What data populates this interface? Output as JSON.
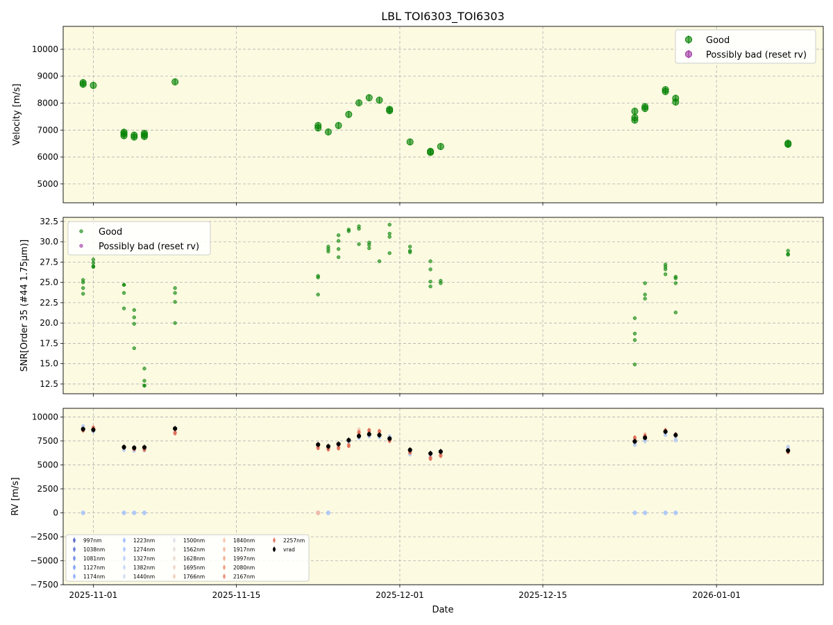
{
  "figure": {
    "title": "LBL TOI6303_TOI6303",
    "xlabel": "Date",
    "x_ticks": [
      "2025-11-01",
      "2025-11-15",
      "2025-12-01",
      "2025-12-15",
      "2026-01-01"
    ],
    "panel_bg": "#fcfae1",
    "colors": {
      "good": "#008000",
      "bad": "#9b30a0",
      "vrad": "#000000",
      "grid": "#b0b0b0"
    }
  },
  "chart_data": [
    {
      "type": "scatter",
      "ylabel": "Velocity [m/s]",
      "ylim": [
        4300,
        10850
      ],
      "y_ticks": [
        5000,
        6000,
        7000,
        8000,
        9000,
        10000
      ],
      "legend": {
        "placement": "top-right",
        "entries": [
          "Good",
          "Possibly bad (reset rv)"
        ]
      },
      "grid": true,
      "series": [
        {
          "name": "Good",
          "points": [
            [
              "2025-10-31",
              8700
            ],
            [
              "2025-10-31",
              8760
            ],
            [
              "2025-11-01",
              8660
            ],
            [
              "2025-11-04",
              6790
            ],
            [
              "2025-11-04",
              6920
            ],
            [
              "2025-11-04",
              6860
            ],
            [
              "2025-11-05",
              6740
            ],
            [
              "2025-11-05",
              6810
            ],
            [
              "2025-11-06",
              6760
            ],
            [
              "2025-11-06",
              6880
            ],
            [
              "2025-11-06",
              6820
            ],
            [
              "2025-11-09",
              8790
            ],
            [
              "2025-11-23",
              7080
            ],
            [
              "2025-11-23",
              7170
            ],
            [
              "2025-11-24",
              6930
            ],
            [
              "2025-11-25",
              7170
            ],
            [
              "2025-11-26",
              7580
            ],
            [
              "2025-11-27",
              8010
            ],
            [
              "2025-11-28",
              8200
            ],
            [
              "2025-11-29",
              8110
            ],
            [
              "2025-11-30",
              7720
            ],
            [
              "2025-11-30",
              7770
            ],
            [
              "2025-12-02",
              6560
            ],
            [
              "2025-12-04",
              6170
            ],
            [
              "2025-12-04",
              6210
            ],
            [
              "2025-12-05",
              6390
            ],
            [
              "2025-12-24",
              7370
            ],
            [
              "2025-12-24",
              7460
            ],
            [
              "2025-12-24",
              7700
            ],
            [
              "2025-12-25",
              7800
            ],
            [
              "2025-12-25",
              7870
            ],
            [
              "2025-12-27",
              8430
            ],
            [
              "2025-12-27",
              8500
            ],
            [
              "2025-12-28",
              8040
            ],
            [
              "2025-12-28",
              8180
            ],
            [
              "2026-01-08",
              6470
            ],
            [
              "2026-01-08",
              6510
            ]
          ]
        },
        {
          "name": "Possibly bad (reset rv)",
          "points": []
        }
      ]
    },
    {
      "type": "scatter",
      "ylabel": "SNR[Order 35 (#44 1.75μm)]",
      "ylim": [
        11.3,
        33.0
      ],
      "y_ticks": [
        12.5,
        15.0,
        17.5,
        20.0,
        22.5,
        25.0,
        27.5,
        30.0,
        32.5
      ],
      "legend": {
        "placement": "top-left",
        "entries": [
          "Good",
          "Possibly bad (reset rv)"
        ]
      },
      "grid": true,
      "series": [
        {
          "name": "Good",
          "points": [
            [
              "2025-10-31",
              25.3
            ],
            [
              "2025-10-31",
              25.0
            ],
            [
              "2025-10-31",
              24.3
            ],
            [
              "2025-10-31",
              23.6
            ],
            [
              "2025-11-01",
              27.8
            ],
            [
              "2025-11-01",
              27.4
            ],
            [
              "2025-11-01",
              27.0
            ],
            [
              "2025-11-01",
              26.9
            ],
            [
              "2025-11-04",
              24.7
            ],
            [
              "2025-11-04",
              24.7
            ],
            [
              "2025-11-04",
              23.7
            ],
            [
              "2025-11-04",
              21.8
            ],
            [
              "2025-11-05",
              21.6
            ],
            [
              "2025-11-05",
              20.7
            ],
            [
              "2025-11-05",
              19.9
            ],
            [
              "2025-11-05",
              16.9
            ],
            [
              "2025-11-06",
              14.4
            ],
            [
              "2025-11-06",
              12.9
            ],
            [
              "2025-11-06",
              12.3
            ],
            [
              "2025-11-06",
              12.3
            ],
            [
              "2025-11-09",
              24.3
            ],
            [
              "2025-11-09",
              23.7
            ],
            [
              "2025-11-09",
              22.6
            ],
            [
              "2025-11-09",
              20.0
            ],
            [
              "2025-11-23",
              25.8
            ],
            [
              "2025-11-23",
              25.6
            ],
            [
              "2025-11-23",
              23.5
            ],
            [
              "2025-11-24",
              29.4
            ],
            [
              "2025-11-24",
              29.1
            ],
            [
              "2025-11-24",
              28.8
            ],
            [
              "2025-11-25",
              30.8
            ],
            [
              "2025-11-25",
              30.1
            ],
            [
              "2025-11-25",
              29.1
            ],
            [
              "2025-11-25",
              28.1
            ],
            [
              "2025-11-26",
              31.5
            ],
            [
              "2025-11-26",
              31.3
            ],
            [
              "2025-11-27",
              31.9
            ],
            [
              "2025-11-27",
              31.6
            ],
            [
              "2025-11-27",
              29.7
            ],
            [
              "2025-11-28",
              29.9
            ],
            [
              "2025-11-28",
              29.6
            ],
            [
              "2025-11-28",
              29.2
            ],
            [
              "2025-11-29",
              27.6
            ],
            [
              "2025-11-30",
              32.1
            ],
            [
              "2025-11-30",
              31.0
            ],
            [
              "2025-11-30",
              30.6
            ],
            [
              "2025-11-30",
              28.6
            ],
            [
              "2025-12-02",
              29.4
            ],
            [
              "2025-12-02",
              28.9
            ],
            [
              "2025-12-02",
              28.7
            ],
            [
              "2025-12-04",
              27.6
            ],
            [
              "2025-12-04",
              26.6
            ],
            [
              "2025-12-04",
              25.1
            ],
            [
              "2025-12-04",
              24.5
            ],
            [
              "2025-12-05",
              25.2
            ],
            [
              "2025-12-05",
              24.9
            ],
            [
              "2025-12-24",
              20.6
            ],
            [
              "2025-12-24",
              18.7
            ],
            [
              "2025-12-24",
              17.9
            ],
            [
              "2025-12-24",
              14.9
            ],
            [
              "2025-12-25",
              24.9
            ],
            [
              "2025-12-25",
              23.5
            ],
            [
              "2025-12-25",
              23.0
            ],
            [
              "2025-12-27",
              27.2
            ],
            [
              "2025-12-27",
              26.9
            ],
            [
              "2025-12-27",
              26.6
            ],
            [
              "2025-12-27",
              26.0
            ],
            [
              "2025-12-28",
              25.7
            ],
            [
              "2025-12-28",
              25.5
            ],
            [
              "2025-12-28",
              24.9
            ],
            [
              "2025-12-28",
              21.3
            ],
            [
              "2026-01-08",
              28.9
            ],
            [
              "2026-01-08",
              28.5
            ],
            [
              "2026-01-08",
              28.4
            ]
          ]
        },
        {
          "name": "Possibly bad (reset rv)",
          "points": []
        }
      ]
    },
    {
      "type": "scatter",
      "ylabel": "RV [m/s]",
      "ylim": [
        -7500,
        10900
      ],
      "y_ticks": [
        -7500,
        -5000,
        -2500,
        0,
        2500,
        5000,
        7500,
        10000
      ],
      "legend": {
        "placement": "bottom-left",
        "entries": [
          "997nm",
          "1038nm",
          "1081nm",
          "1127nm",
          "1174nm",
          "1223nm",
          "1274nm",
          "1327nm",
          "1382nm",
          "1440nm",
          "1500nm",
          "1562nm",
          "1628nm",
          "1695nm",
          "1766nm",
          "1840nm",
          "1917nm",
          "1997nm",
          "2080nm",
          "2167nm",
          "2257nm",
          "vrad"
        ]
      },
      "grid": true,
      "band_colors": [
        "#3b4cc0",
        "#4a63d3",
        "#5b7be0",
        "#6b8df0",
        "#7b9ff9",
        "#8caffe",
        "#9ebeff",
        "#aec9fc",
        "#bcd2f7",
        "#cad8ef",
        "#d6dce4",
        "#e0dbd9",
        "#e8d6cc",
        "#eecfbf",
        "#f2c6b0",
        "#f5bba1",
        "#f5ae91",
        "#f29f80",
        "#ee8d70",
        "#e77b62",
        "#de6753"
      ],
      "vrad_points": [
        [
          "2025-10-31",
          8730
        ],
        [
          "2025-11-01",
          8660
        ],
        [
          "2025-11-04",
          6850
        ],
        [
          "2025-11-05",
          6780
        ],
        [
          "2025-11-06",
          6830
        ],
        [
          "2025-11-09",
          8790
        ],
        [
          "2025-11-23",
          7120
        ],
        [
          "2025-11-24",
          6930
        ],
        [
          "2025-11-25",
          7170
        ],
        [
          "2025-11-26",
          7580
        ],
        [
          "2025-11-27",
          8010
        ],
        [
          "2025-11-28",
          8200
        ],
        [
          "2025-11-29",
          8110
        ],
        [
          "2025-11-30",
          7740
        ],
        [
          "2025-12-02",
          6560
        ],
        [
          "2025-12-04",
          6190
        ],
        [
          "2025-12-05",
          6390
        ],
        [
          "2025-12-24",
          7450
        ],
        [
          "2025-12-25",
          7830
        ],
        [
          "2025-12-27",
          8470
        ],
        [
          "2025-12-28",
          8110
        ],
        [
          "2026-01-08",
          6490
        ]
      ],
      "zero_points": [
        [
          "2025-10-31",
          0
        ],
        [
          "2025-11-04",
          0
        ],
        [
          "2025-11-05",
          0
        ],
        [
          "2025-11-06",
          0
        ],
        [
          "2025-11-23",
          0
        ],
        [
          "2025-11-24",
          0
        ],
        [
          "2025-12-24",
          0
        ],
        [
          "2025-12-25",
          0
        ],
        [
          "2025-12-27",
          0
        ],
        [
          "2025-12-28",
          0
        ]
      ]
    }
  ]
}
